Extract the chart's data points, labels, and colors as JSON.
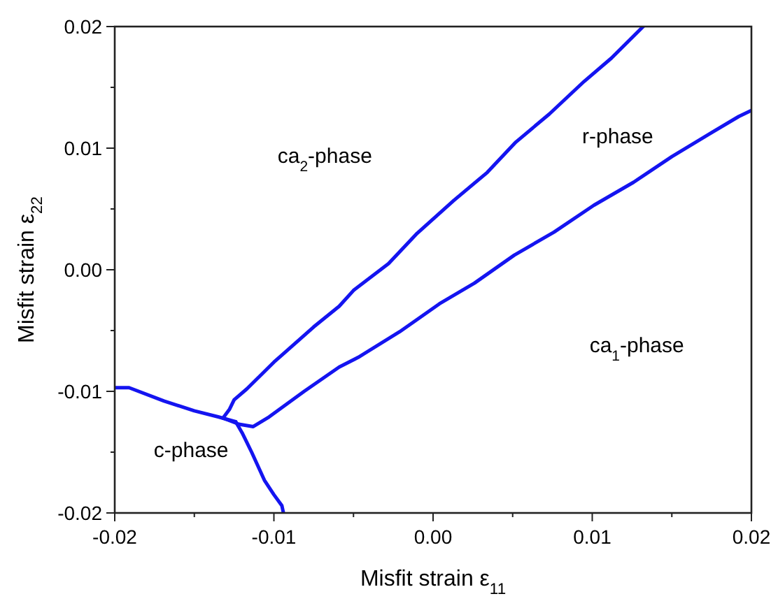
{
  "chart_data": {
    "type": "line",
    "xlabel": "Misfit strain ε$_{11}$",
    "ylabel": "Misfit strain ε$_{22}$",
    "xlim": [
      -0.02,
      0.02
    ],
    "ylim": [
      -0.02,
      0.02
    ],
    "xticks": [
      {
        "value": -0.02,
        "label": "-0.02"
      },
      {
        "value": -0.015,
        "label": null
      },
      {
        "value": -0.01,
        "label": "-0.01"
      },
      {
        "value": -0.005,
        "label": null
      },
      {
        "value": 0,
        "label": "0.00"
      },
      {
        "value": 0.005,
        "label": null
      },
      {
        "value": 0.01,
        "label": "0.01"
      },
      {
        "value": 0.015,
        "label": null
      },
      {
        "value": 0.02,
        "label": "0.02"
      }
    ],
    "yticks": [
      {
        "value": -0.02,
        "label": "-0.02"
      },
      {
        "value": -0.015,
        "label": null
      },
      {
        "value": -0.01,
        "label": "-0.01"
      },
      {
        "value": -0.005,
        "label": null
      },
      {
        "value": 0,
        "label": "0.00"
      },
      {
        "value": 0.005,
        "label": null
      },
      {
        "value": 0.01,
        "label": "0.01"
      },
      {
        "value": 0.015,
        "label": null
      },
      {
        "value": 0.02,
        "label": "0.02"
      }
    ],
    "grid": false,
    "marker": "none",
    "line_style": "solid",
    "series": [
      {
        "color": "#1414f0",
        "x": [
          -0.02,
          -0.0191,
          -0.0169,
          -0.015,
          -0.0135,
          -0.0124
        ],
        "values": [
          -0.0097,
          -0.0097,
          -0.0108,
          -0.0116,
          -0.0121,
          -0.0125
        ]
      },
      {
        "color": "#1414f0",
        "x": [
          -0.0124,
          -0.012,
          -0.0114,
          -0.0106,
          -0.01,
          -0.0095,
          -0.0094
        ],
        "values": [
          -0.0125,
          -0.0134,
          -0.015,
          -0.0173,
          -0.0185,
          -0.0194,
          -0.02
        ]
      },
      {
        "color": "#1414f0",
        "x": [
          -0.0132,
          -0.0128,
          -0.0125,
          -0.0117,
          -0.01,
          -0.0075,
          -0.0059,
          -0.005,
          -0.0028,
          -0.001,
          0.0013,
          0.0034,
          0.0052,
          0.0073,
          0.0095,
          0.0112,
          0.0132
        ],
        "values": [
          -0.0122,
          -0.0115,
          -0.0107,
          -0.0098,
          -0.0076,
          -0.0047,
          -0.003,
          -0.0017,
          0.0005,
          0.003,
          0.0057,
          0.008,
          0.0105,
          0.0128,
          0.0155,
          0.0174,
          0.02
        ]
      },
      {
        "color": "#1414f0",
        "x": [
          -0.0132,
          -0.0122,
          -0.0113,
          -0.0103,
          -0.0081,
          -0.0059,
          -0.0047,
          -0.0021,
          0.0004,
          0.0026,
          0.0051,
          0.0076,
          0.0101,
          0.0126,
          0.015,
          0.0174,
          0.0192,
          0.02
        ],
        "values": [
          -0.0122,
          -0.0127,
          -0.0129,
          -0.0121,
          -0.01,
          -0.008,
          -0.0072,
          -0.0051,
          -0.0028,
          -0.0011,
          0.0012,
          0.0031,
          0.0053,
          0.0072,
          0.0093,
          0.0112,
          0.0126,
          0.0131
        ]
      }
    ],
    "annotations": [
      "ca$_{2}$-phase",
      "r-phase",
      "ca$_{1}$-phase",
      "c-phase"
    ]
  }
}
